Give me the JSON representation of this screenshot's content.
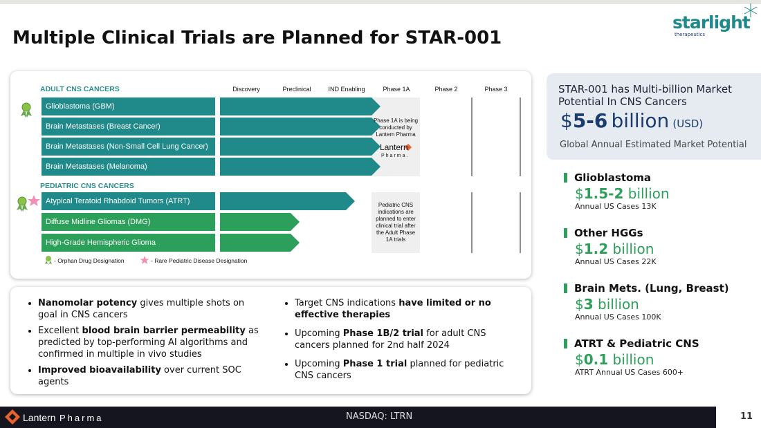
{
  "header": {
    "title": "Multiple Clinical Trials are Planned for STAR-001",
    "logo": "starlight",
    "logo_sub": "therapeutics"
  },
  "pipeline": {
    "adult_label": "ADULT CNS CANCERS",
    "pediatric_label": "PEDIATRIC CNS CANCERS",
    "stages": [
      "Discovery",
      "Preclinical",
      "IND Enabling",
      "Phase 1A",
      "Phase 2",
      "Phase 3"
    ],
    "adult_rows": [
      "Glioblastoma (GBM)",
      "Brain Metastases (Breast Cancer)",
      "Brain Metastases (Non-Small Cell Lung Cancer)",
      "Brain Metastases (Melanoma)"
    ],
    "pediatric_rows": [
      "Atypical Teratoid Rhabdoid Tumors (ATRT)",
      "Diffuse Midline Gliomas (DMG)",
      "High-Grade Hemispheric Glioma"
    ],
    "adult_note": "Phase 1A is being conducted by Lantern Pharma",
    "partner_logo": "Lantern",
    "partner_logo_sub": "Pharma.",
    "pediatric_note": "Pediatric CNS indications are planned to enter clinical trial after the Adult Phase 1A trials",
    "legend": [
      "- Orphan Drug Designation",
      "- Rare Pediatric Disease Designation"
    ]
  },
  "bullets": {
    "left": [
      [
        "Nanomolar potency",
        " gives multiple shots on goal in CNS cancers"
      ],
      [
        "Excellent ",
        "blood brain barrier permeability",
        " as predicted by top-performing AI algorithms and confirmed in multiple in vivo studies"
      ],
      [
        "Improved bioavailability",
        " over current SOC agents"
      ]
    ],
    "right": [
      [
        "Target CNS indications ",
        "have limited or no effective therapies"
      ],
      [
        "Upcoming ",
        "Phase 1B/2 trial",
        " for adult CNS cancers planned for 2nd half 2024"
      ],
      [
        "Upcoming ",
        "Phase 1 trial",
        " planned for pediatric CNS cancers"
      ]
    ]
  },
  "market": {
    "heading": "STAR-001 has Multi-billion Market Potential In CNS Cancers",
    "currency": "$",
    "amount": "5-6",
    "unit": "billion",
    "note": "(USD)",
    "caption": "Global Annual Estimated Market Potential",
    "indications": [
      {
        "name": "Glioblastoma",
        "currency": "$",
        "amount": "1.5-2",
        "unit": "billion",
        "cases": "Annual US Cases 13K"
      },
      {
        "name": "Other HGGs",
        "currency": "$",
        "amount": "1.2",
        "unit": "billion",
        "cases": "Annual US Cases 22K"
      },
      {
        "name": "Brain Mets. (Lung, Breast)",
        "currency": "$",
        "amount": "3",
        "unit": "billion",
        "cases": "Annual US Cases 100K"
      },
      {
        "name": "ATRT & Pediatric CNS",
        "currency": "$",
        "amount": "0.1",
        "unit": "billion",
        "cases": "ATRT Annual US Cases 600+"
      }
    ]
  },
  "footer": {
    "brand": "Lantern",
    "brand_sub": "Pharma",
    "ticker": "NASDAQ: LTRN",
    "page": "11"
  }
}
